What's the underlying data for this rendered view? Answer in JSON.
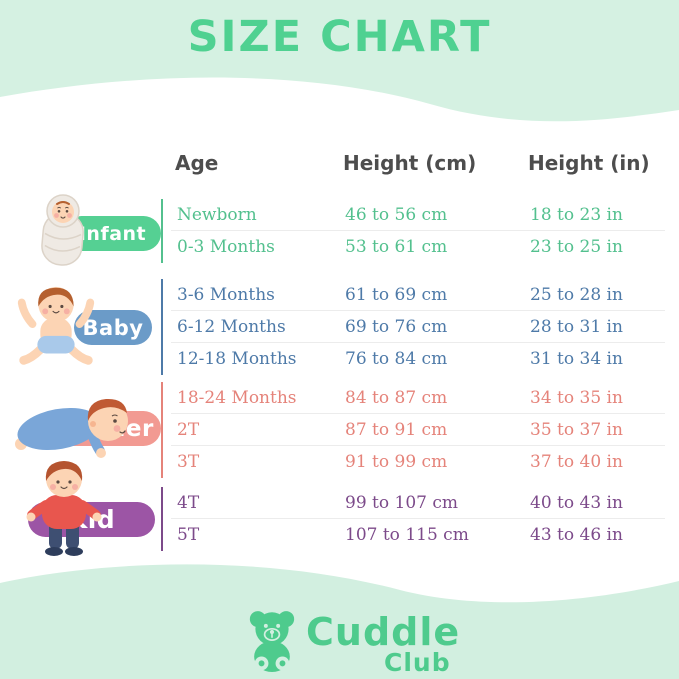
{
  "title": "SIZE CHART",
  "table": {
    "headers": {
      "age": "Age",
      "cm": "Height (cm)",
      "in": "Height (in)"
    },
    "groups": [
      {
        "id": "infant",
        "label": "Infant",
        "pill_color": "#55d093",
        "text_color": "#53c08e",
        "rows": [
          {
            "age": "Newborn",
            "cm": "46 to 56 cm",
            "in": "18 to 23 in"
          },
          {
            "age": "0-3 Months",
            "cm": "53 to 61 cm",
            "in": "23 to 25 in"
          }
        ]
      },
      {
        "id": "baby",
        "label": "Baby",
        "pill_color": "#6b9bc8",
        "text_color": "#4e7aa8",
        "rows": [
          {
            "age": "3-6 Months",
            "cm": "61 to 69 cm",
            "in": "25 to 28 in"
          },
          {
            "age": "6-12 Months",
            "cm": "69 to 76 cm",
            "in": "28 to 31 in"
          },
          {
            "age": "12-18 Months",
            "cm": "76 to 84 cm",
            "in": "31 to 34 in"
          }
        ]
      },
      {
        "id": "toddler",
        "label": "Toddler",
        "pill_color": "#f29a92",
        "text_color": "#e5837a",
        "rows": [
          {
            "age": "18-24 Months",
            "cm": "84 to 87 cm",
            "in": "34 to 35 in"
          },
          {
            "age": "2T",
            "cm": "87 to 91 cm",
            "in": "35 to 37 in"
          },
          {
            "age": "3T",
            "cm": "91 to 99 cm",
            "in": "37 to 40 in"
          }
        ]
      },
      {
        "id": "kid",
        "label": "Kid",
        "pill_color": "#9c55a5",
        "text_color": "#7c4a8a",
        "rows": [
          {
            "age": "4T",
            "cm": "99 to 107 cm",
            "in": "40 to 43 in"
          },
          {
            "age": "5T",
            "cm": "107 to 115 cm",
            "in": "43 to 46 in"
          }
        ]
      }
    ]
  },
  "logo": {
    "brand": "Cuddle",
    "sub": "Club"
  },
  "colors": {
    "accent_green": "#4fd191",
    "logo_green": "#4ecb8d",
    "mint_bg": "#d5f1e2",
    "header_text": "#4d4d4d"
  },
  "chart_data": {
    "type": "table",
    "title": "SIZE CHART",
    "columns": [
      "Age",
      "Height (cm)",
      "Height (in)"
    ],
    "rows": [
      [
        "Newborn",
        "46 to 56 cm",
        "18 to 23 in"
      ],
      [
        "0-3 Months",
        "53 to 61 cm",
        "23 to 25 in"
      ],
      [
        "3-6 Months",
        "61 to 69 cm",
        "25 to 28 in"
      ],
      [
        "6-12 Months",
        "69 to 76 cm",
        "28 to 31 in"
      ],
      [
        "12-18 Months",
        "76 to 84 cm",
        "31 to 34 in"
      ],
      [
        "18-24 Months",
        "84 to 87 cm",
        "34 to 35 in"
      ],
      [
        "2T",
        "87 to 91 cm",
        "35 to 37 in"
      ],
      [
        "3T",
        "91 to 99 cm",
        "37 to 40 in"
      ],
      [
        "4T",
        "99 to 107 cm",
        "40 to 43 in"
      ],
      [
        "5T",
        "107 to 115 cm",
        "43 to 46 in"
      ]
    ],
    "row_groups": [
      {
        "name": "Infant",
        "row_indexes": [
          0,
          1
        ]
      },
      {
        "name": "Baby",
        "row_indexes": [
          2,
          3,
          4
        ]
      },
      {
        "name": "Toddler",
        "row_indexes": [
          5,
          6,
          7
        ]
      },
      {
        "name": "Kid",
        "row_indexes": [
          8,
          9
        ]
      }
    ]
  }
}
